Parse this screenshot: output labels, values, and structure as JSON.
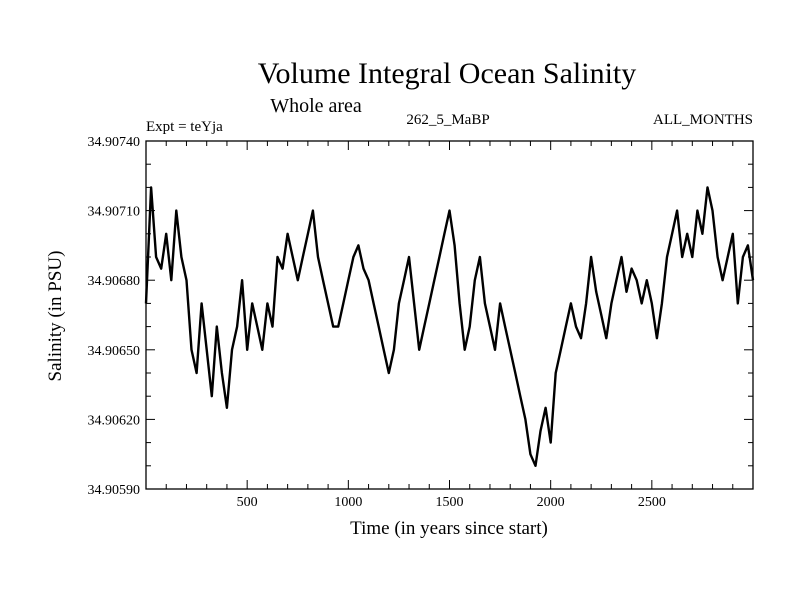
{
  "chart_data": {
    "type": "line",
    "title": "Volume Integral Ocean Salinity",
    "subtitle": "Whole area",
    "expt_label": "Expt = teYja",
    "run_label": "262_5_MaBP",
    "months_label": "ALL_MONTHS",
    "xlabel": "Time (in years since start)",
    "ylabel": "Salinity (in PSU)",
    "xlim": [
      0,
      3000
    ],
    "ylim": [
      34.9059,
      34.9074
    ],
    "x_ticks": [
      {
        "value": 500,
        "label": "500"
      },
      {
        "value": 1000,
        "label": "1000"
      },
      {
        "value": 1500,
        "label": "1500"
      },
      {
        "value": 2000,
        "label": "2000"
      },
      {
        "value": 2500,
        "label": "2500"
      }
    ],
    "y_ticks": [
      {
        "value": 34.9059,
        "label": "34.90590"
      },
      {
        "value": 34.9062,
        "label": "34.90620"
      },
      {
        "value": 34.9065,
        "label": "34.90650"
      },
      {
        "value": 34.9068,
        "label": "34.90680"
      },
      {
        "value": 34.9071,
        "label": "34.90710"
      },
      {
        "value": 34.9074,
        "label": "34.90740"
      }
    ],
    "series": [
      {
        "name": "Salinity",
        "color": "#000000",
        "x": [
          0,
          25,
          50,
          75,
          100,
          125,
          150,
          175,
          200,
          225,
          250,
          275,
          300,
          325,
          350,
          375,
          400,
          425,
          450,
          475,
          500,
          525,
          550,
          575,
          600,
          625,
          650,
          675,
          700,
          725,
          750,
          775,
          800,
          825,
          850,
          875,
          900,
          925,
          950,
          975,
          1000,
          1025,
          1050,
          1075,
          1100,
          1125,
          1150,
          1175,
          1200,
          1225,
          1250,
          1275,
          1300,
          1325,
          1350,
          1375,
          1400,
          1425,
          1450,
          1475,
          1500,
          1525,
          1550,
          1575,
          1600,
          1625,
          1650,
          1675,
          1700,
          1725,
          1750,
          1775,
          1800,
          1825,
          1850,
          1875,
          1900,
          1925,
          1950,
          1975,
          2000,
          2025,
          2050,
          2075,
          2100,
          2125,
          2150,
          2175,
          2200,
          2225,
          2250,
          2275,
          2300,
          2325,
          2350,
          2375,
          2400,
          2425,
          2450,
          2475,
          2500,
          2525,
          2550,
          2575,
          2600,
          2625,
          2650,
          2675,
          2700,
          2725,
          2750,
          2775,
          2800,
          2825,
          2850,
          2875,
          2900,
          2925,
          2950,
          2975,
          3000
        ],
        "y": [
          34.9067,
          34.9072,
          34.9069,
          34.90685,
          34.907,
          34.9068,
          34.9071,
          34.9069,
          34.9068,
          34.9065,
          34.9064,
          34.9067,
          34.9065,
          34.9063,
          34.9066,
          34.9064,
          34.90625,
          34.9065,
          34.9066,
          34.9068,
          34.9065,
          34.9067,
          34.9066,
          34.9065,
          34.9067,
          34.9066,
          34.9069,
          34.90685,
          34.907,
          34.9069,
          34.9068,
          34.9069,
          34.907,
          34.9071,
          34.9069,
          34.9068,
          34.9067,
          34.9066,
          34.9066,
          34.9067,
          34.9068,
          34.9069,
          34.90695,
          34.90685,
          34.9068,
          34.9067,
          34.9066,
          34.9065,
          34.9064,
          34.9065,
          34.9067,
          34.9068,
          34.9069,
          34.9067,
          34.9065,
          34.9066,
          34.9067,
          34.9068,
          34.9069,
          34.907,
          34.9071,
          34.90695,
          34.9067,
          34.9065,
          34.9066,
          34.9068,
          34.9069,
          34.9067,
          34.9066,
          34.9065,
          34.9067,
          34.9066,
          34.9065,
          34.9064,
          34.9063,
          34.9062,
          34.90605,
          34.906,
          34.90615,
          34.90625,
          34.9061,
          34.9064,
          34.9065,
          34.9066,
          34.9067,
          34.9066,
          34.90655,
          34.9067,
          34.9069,
          34.90675,
          34.90665,
          34.90655,
          34.9067,
          34.9068,
          34.9069,
          34.90675,
          34.90685,
          34.9068,
          34.9067,
          34.9068,
          34.9067,
          34.90655,
          34.9067,
          34.9069,
          34.907,
          34.9071,
          34.9069,
          34.907,
          34.9069,
          34.9071,
          34.907,
          34.9072,
          34.9071,
          34.9069,
          34.9068,
          34.9069,
          34.907,
          34.9067,
          34.9069,
          34.90695,
          34.9068
        ]
      }
    ]
  }
}
